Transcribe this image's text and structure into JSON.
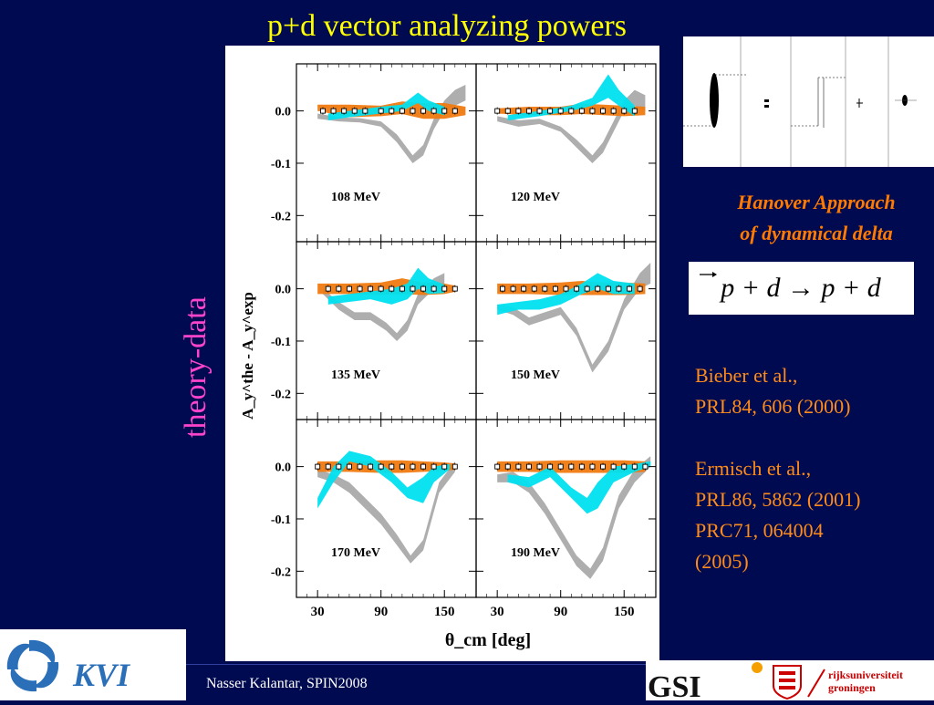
{
  "slide": {
    "title": "p+d vector analyzing powers",
    "side_label": "theory-data",
    "hanover_line1": "Hanover Approach",
    "hanover_line2": "of dynamical delta",
    "equation": "p + d → p + d",
    "refs": [
      "Bieber et al.,",
      "PRL84, 606 (2000)",
      "Ermisch et al.,",
      "PRL86, 5862 (2001)",
      "PRC71, 064004",
      "(2005)"
    ],
    "footer": "Nasser Kalantar, SPIN2008",
    "logos": {
      "kvi": "KVI",
      "gsi": "GSI",
      "rug_line1": "rijksuniversiteit",
      "rug_line2": "groningen"
    }
  },
  "chart_data": {
    "type": "line",
    "ylabel": "A_y^the - A_y^exp",
    "xlabel": "θ_cm [deg]",
    "xticks": [
      30,
      90,
      150
    ],
    "yticks": [
      "0.0",
      "-0.1",
      "-0.2"
    ],
    "xlim": [
      10,
      180
    ],
    "ylim": [
      -0.25,
      0.09
    ],
    "colors": {
      "orange": "#f07a10",
      "cyan": "#00e0f0",
      "gray": "#aaaaaa",
      "data": "#000000"
    },
    "panels": [
      {
        "label": "108 MeV",
        "orange": [
          [
            30,
            0.0,
            0.012
          ],
          [
            60,
            -0.012,
            0.012
          ],
          [
            90,
            -0.01,
            0.01
          ],
          [
            110,
            -0.006,
            0.018
          ],
          [
            130,
            -0.015,
            0.015
          ],
          [
            150,
            -0.015,
            0.015
          ],
          [
            170,
            -0.008,
            0.008
          ]
        ],
        "cyan": [
          [
            40,
            -0.018,
            -0.005
          ],
          [
            60,
            -0.012,
            0.0
          ],
          [
            90,
            -0.005,
            0.008
          ],
          [
            110,
            0.0,
            0.012
          ],
          [
            125,
            0.015,
            0.035
          ],
          [
            135,
            0.0,
            0.02
          ],
          [
            150,
            -0.008,
            0.008
          ]
        ],
        "gray": [
          [
            30,
            -0.015,
            -0.005
          ],
          [
            50,
            -0.02,
            -0.012
          ],
          [
            70,
            -0.022,
            -0.014
          ],
          [
            90,
            -0.03,
            -0.02
          ],
          [
            105,
            -0.06,
            -0.045
          ],
          [
            120,
            -0.1,
            -0.085
          ],
          [
            130,
            -0.085,
            -0.065
          ],
          [
            140,
            -0.035,
            -0.015
          ],
          [
            150,
            0.0,
            0.02
          ],
          [
            160,
            0.01,
            0.04
          ],
          [
            170,
            0.02,
            0.05
          ]
        ],
        "data": [
          [
            35,
            0.0
          ],
          [
            45,
            0.0
          ],
          [
            55,
            0.0
          ],
          [
            65,
            0.0
          ],
          [
            75,
            0.0
          ],
          [
            90,
            0.0
          ],
          [
            100,
            0.0
          ],
          [
            110,
            0.0
          ],
          [
            120,
            0.0
          ],
          [
            130,
            0.0
          ],
          [
            140,
            0.0
          ],
          [
            150,
            0.0
          ],
          [
            160,
            0.0
          ]
        ]
      },
      {
        "label": "120 MeV",
        "orange": [
          [
            30,
            -0.005,
            0.005
          ],
          [
            60,
            -0.008,
            0.008
          ],
          [
            90,
            -0.008,
            0.008
          ],
          [
            110,
            -0.006,
            0.014
          ],
          [
            130,
            -0.008,
            0.012
          ],
          [
            150,
            -0.01,
            0.01
          ],
          [
            170,
            -0.008,
            0.008
          ]
        ],
        "cyan": [
          [
            40,
            -0.018,
            -0.008
          ],
          [
            70,
            -0.01,
            0.0
          ],
          [
            100,
            0.0,
            0.01
          ],
          [
            120,
            0.01,
            0.025
          ],
          [
            135,
            0.025,
            0.07
          ],
          [
            145,
            0.01,
            0.04
          ],
          [
            160,
            -0.01,
            0.01
          ]
        ],
        "gray": [
          [
            30,
            -0.02,
            -0.01
          ],
          [
            50,
            -0.03,
            -0.018
          ],
          [
            70,
            -0.025,
            -0.015
          ],
          [
            90,
            -0.04,
            -0.03
          ],
          [
            105,
            -0.07,
            -0.055
          ],
          [
            120,
            -0.1,
            -0.085
          ],
          [
            130,
            -0.08,
            -0.06
          ],
          [
            140,
            -0.04,
            -0.02
          ],
          [
            150,
            0.0,
            0.02
          ],
          [
            160,
            0.01,
            0.04
          ],
          [
            170,
            0.0,
            0.03
          ]
        ],
        "data": [
          [
            30,
            0.0
          ],
          [
            40,
            0.0
          ],
          [
            50,
            0.0
          ],
          [
            60,
            0.0
          ],
          [
            70,
            0.0
          ],
          [
            80,
            0.0
          ],
          [
            90,
            0.0
          ],
          [
            100,
            0.0
          ],
          [
            110,
            0.0
          ],
          [
            120,
            0.0
          ],
          [
            130,
            0.0
          ],
          [
            140,
            0.0
          ],
          [
            150,
            0.0
          ],
          [
            160,
            0.0
          ]
        ]
      },
      {
        "label": "135 MeV",
        "orange": [
          [
            30,
            -0.01,
            0.01
          ],
          [
            60,
            -0.01,
            0.01
          ],
          [
            90,
            -0.012,
            0.012
          ],
          [
            110,
            -0.01,
            0.02
          ],
          [
            130,
            -0.012,
            0.012
          ],
          [
            150,
            -0.01,
            0.01
          ],
          [
            160,
            -0.006,
            0.006
          ]
        ],
        "cyan": [
          [
            40,
            -0.03,
            -0.015
          ],
          [
            60,
            -0.025,
            -0.01
          ],
          [
            80,
            -0.02,
            -0.005
          ],
          [
            100,
            -0.03,
            0.0
          ],
          [
            115,
            -0.02,
            0.01
          ],
          [
            125,
            0.0,
            0.04
          ],
          [
            135,
            -0.01,
            0.02
          ],
          [
            150,
            -0.008,
            0.008
          ]
        ],
        "gray": [
          [
            35,
            -0.01,
            0.0
          ],
          [
            50,
            -0.04,
            -0.025
          ],
          [
            65,
            -0.06,
            -0.045
          ],
          [
            80,
            -0.06,
            -0.045
          ],
          [
            95,
            -0.08,
            -0.065
          ],
          [
            105,
            -0.1,
            -0.085
          ],
          [
            115,
            -0.08,
            -0.06
          ],
          [
            125,
            -0.03,
            -0.01
          ],
          [
            140,
            0.0,
            0.02
          ],
          [
            150,
            0.01,
            0.03
          ]
        ],
        "data": [
          [
            40,
            0.0
          ],
          [
            50,
            0.0
          ],
          [
            60,
            0.0
          ],
          [
            70,
            0.0
          ],
          [
            80,
            0.0
          ],
          [
            90,
            0.0
          ],
          [
            100,
            0.0
          ],
          [
            110,
            0.0
          ],
          [
            120,
            0.0
          ],
          [
            130,
            0.0
          ],
          [
            140,
            0.0
          ],
          [
            150,
            0.0
          ],
          [
            160,
            0.0
          ]
        ]
      },
      {
        "label": "150 MeV",
        "orange": [
          [
            30,
            -0.01,
            0.01
          ],
          [
            60,
            -0.01,
            0.01
          ],
          [
            90,
            -0.012,
            0.012
          ],
          [
            110,
            -0.012,
            0.015
          ],
          [
            130,
            -0.012,
            0.012
          ],
          [
            150,
            -0.012,
            0.012
          ],
          [
            170,
            -0.01,
            0.01
          ]
        ],
        "cyan": [
          [
            30,
            -0.05,
            -0.03
          ],
          [
            50,
            -0.04,
            -0.025
          ],
          [
            70,
            -0.04,
            -0.02
          ],
          [
            90,
            -0.03,
            -0.01
          ],
          [
            110,
            -0.01,
            0.01
          ],
          [
            125,
            0.0,
            0.03
          ],
          [
            140,
            -0.01,
            0.015
          ],
          [
            160,
            -0.01,
            0.01
          ]
        ],
        "gray": [
          [
            30,
            -0.04,
            -0.03
          ],
          [
            45,
            -0.05,
            -0.035
          ],
          [
            60,
            -0.07,
            -0.055
          ],
          [
            75,
            -0.06,
            -0.045
          ],
          [
            90,
            -0.05,
            -0.035
          ],
          [
            105,
            -0.09,
            -0.075
          ],
          [
            120,
            -0.16,
            -0.145
          ],
          [
            135,
            -0.12,
            -0.1
          ],
          [
            150,
            -0.04,
            -0.02
          ],
          [
            165,
            0.0,
            0.03
          ],
          [
            175,
            0.01,
            0.05
          ]
        ],
        "data": [
          [
            35,
            0.0
          ],
          [
            45,
            0.0
          ],
          [
            55,
            0.0
          ],
          [
            65,
            0.0
          ],
          [
            75,
            0.0
          ],
          [
            85,
            0.0
          ],
          [
            95,
            0.0
          ],
          [
            105,
            0.0
          ],
          [
            115,
            0.0
          ],
          [
            125,
            0.0
          ],
          [
            135,
            0.0
          ],
          [
            145,
            0.0
          ],
          [
            155,
            0.0
          ],
          [
            165,
            0.0
          ]
        ]
      },
      {
        "label": "170 MeV",
        "orange": [
          [
            30,
            -0.01,
            0.01
          ],
          [
            60,
            -0.01,
            0.01
          ],
          [
            90,
            -0.012,
            0.012
          ],
          [
            110,
            -0.012,
            0.012
          ],
          [
            130,
            -0.01,
            0.01
          ],
          [
            150,
            -0.008,
            0.008
          ],
          [
            160,
            -0.006,
            0.006
          ]
        ],
        "cyan": [
          [
            30,
            -0.08,
            -0.06
          ],
          [
            45,
            -0.03,
            0.0
          ],
          [
            60,
            0.01,
            0.03
          ],
          [
            80,
            0.0,
            0.02
          ],
          [
            100,
            -0.03,
            -0.01
          ],
          [
            115,
            -0.06,
            -0.04
          ],
          [
            130,
            -0.07,
            -0.02
          ],
          [
            140,
            -0.03,
            0.0
          ],
          [
            155,
            -0.005,
            0.005
          ]
        ],
        "gray": [
          [
            30,
            -0.02,
            -0.005
          ],
          [
            45,
            -0.03,
            -0.015
          ],
          [
            60,
            -0.05,
            -0.03
          ],
          [
            75,
            -0.08,
            -0.06
          ],
          [
            90,
            -0.11,
            -0.09
          ],
          [
            105,
            -0.15,
            -0.13
          ],
          [
            118,
            -0.185,
            -0.17
          ],
          [
            130,
            -0.16,
            -0.14
          ],
          [
            145,
            -0.05,
            -0.03
          ],
          [
            160,
            -0.01,
            0.01
          ]
        ],
        "data": [
          [
            30,
            0.0
          ],
          [
            40,
            0.0
          ],
          [
            50,
            0.0
          ],
          [
            60,
            0.0
          ],
          [
            70,
            0.0
          ],
          [
            80,
            0.0
          ],
          [
            90,
            0.0
          ],
          [
            100,
            0.0
          ],
          [
            110,
            0.0
          ],
          [
            120,
            0.0
          ],
          [
            130,
            0.0
          ],
          [
            140,
            0.0
          ],
          [
            150,
            0.0
          ],
          [
            160,
            0.0
          ]
        ]
      },
      {
        "label": "190 MeV",
        "orange": [
          [
            30,
            -0.01,
            0.01
          ],
          [
            60,
            -0.01,
            0.01
          ],
          [
            90,
            -0.012,
            0.012
          ],
          [
            110,
            -0.012,
            0.012
          ],
          [
            130,
            -0.012,
            0.012
          ],
          [
            150,
            -0.012,
            0.012
          ],
          [
            170,
            -0.01,
            0.01
          ]
        ],
        "cyan": [
          [
            40,
            -0.03,
            -0.015
          ],
          [
            60,
            -0.04,
            -0.02
          ],
          [
            80,
            -0.02,
            0.0
          ],
          [
            100,
            -0.06,
            -0.04
          ],
          [
            115,
            -0.09,
            -0.06
          ],
          [
            125,
            -0.08,
            -0.03
          ],
          [
            140,
            -0.03,
            0.0
          ],
          [
            160,
            -0.01,
            0.005
          ],
          [
            175,
            0.0,
            0.01
          ]
        ],
        "gray": [
          [
            30,
            -0.03,
            -0.015
          ],
          [
            45,
            -0.03,
            -0.01
          ],
          [
            60,
            -0.05,
            -0.03
          ],
          [
            75,
            -0.09,
            -0.07
          ],
          [
            90,
            -0.14,
            -0.12
          ],
          [
            105,
            -0.19,
            -0.17
          ],
          [
            118,
            -0.215,
            -0.195
          ],
          [
            130,
            -0.18,
            -0.155
          ],
          [
            145,
            -0.08,
            -0.055
          ],
          [
            160,
            -0.03,
            -0.005
          ],
          [
            175,
            0.0,
            0.02
          ]
        ],
        "data": [
          [
            30,
            0.0
          ],
          [
            40,
            0.0
          ],
          [
            50,
            0.0
          ],
          [
            60,
            0.0
          ],
          [
            70,
            0.0
          ],
          [
            80,
            0.0
          ],
          [
            90,
            0.0
          ],
          [
            100,
            0.0
          ],
          [
            110,
            0.0
          ],
          [
            120,
            0.0
          ],
          [
            130,
            0.0
          ],
          [
            140,
            0.0
          ],
          [
            150,
            0.0
          ],
          [
            160,
            0.0
          ],
          [
            170,
            0.0
          ]
        ]
      }
    ]
  }
}
